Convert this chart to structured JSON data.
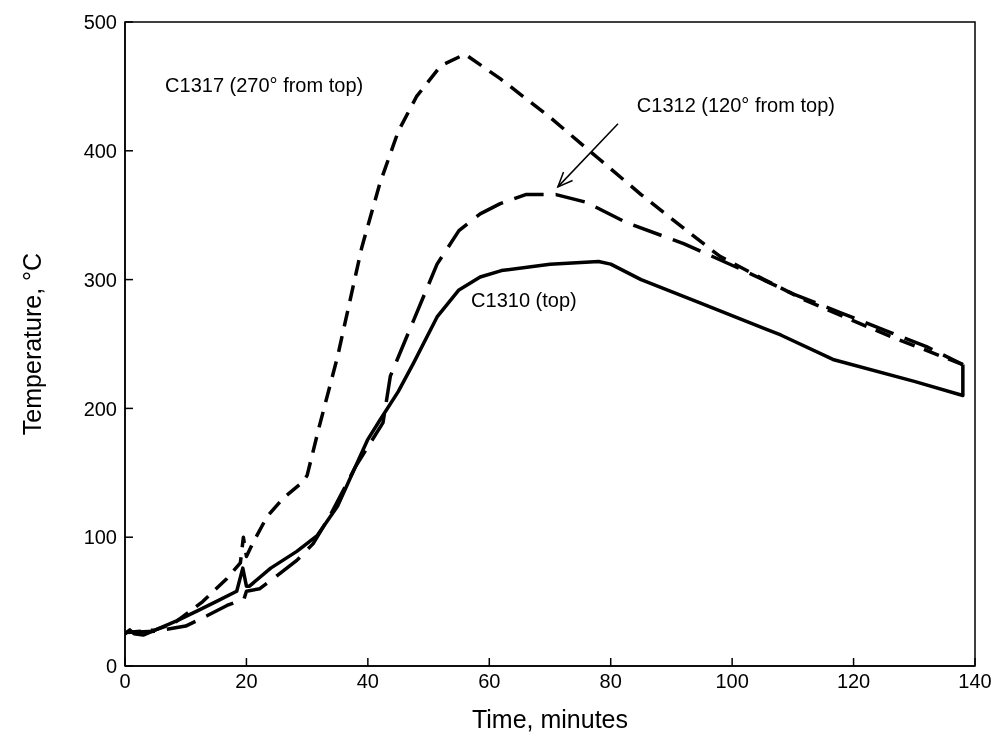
{
  "chart_data": {
    "type": "line",
    "xlabel": "Time, minutes",
    "ylabel": "Temperature, °C",
    "xlim": [
      0,
      140
    ],
    "xticks": [
      0,
      20,
      40,
      60,
      80,
      100,
      120,
      140
    ],
    "ylim": [
      0,
      500
    ],
    "yticks": [
      0,
      100,
      200,
      300,
      400,
      500
    ],
    "grid": false,
    "legend": false,
    "marker": "none",
    "series": [
      {
        "name": "C1317 (270° from top)",
        "color": "#000000",
        "line_style": "dashed",
        "x": [
          0,
          5,
          8,
          12.8,
          16.8,
          19,
          19.5,
          20,
          21,
          23.4,
          26,
          29.3,
          30,
          32,
          35,
          39,
          42,
          45,
          48,
          52,
          56,
          61.8,
          70,
          78,
          85,
          92,
          98,
          105.7,
          112,
          120,
          126.5,
          132,
          138
        ],
        "values": [
          26,
          28,
          33,
          50,
          68,
          80,
          100,
          85,
          95,
          116,
          130,
          143,
          148,
          186,
          240,
          325,
          375,
          415,
          442,
          466,
          475,
          456,
          426,
          394,
          366,
          340,
          318,
          299,
          284,
          268,
          255,
          245,
          234
        ]
      },
      {
        "name": "C1312 (120° from top)",
        "color": "#000000",
        "line_style": "dashed",
        "x": [
          0,
          5,
          10,
          13.5,
          16.8,
          19,
          19.6,
          20,
          22.2,
          25,
          28.3,
          31,
          33.8,
          38,
          42.5,
          43.7,
          47.5,
          51.4,
          55,
          58.5,
          61.8,
          66,
          71,
          76,
          82.7,
          92,
          101,
          110,
          118,
          126,
          132,
          138
        ],
        "values": [
          26,
          27,
          31,
          39,
          47,
          51,
          52,
          58,
          60,
          70,
          82,
          95,
          117,
          155,
          189,
          225,
          268,
          312,
          338,
          351,
          359,
          366,
          366,
          360,
          344,
          328,
          309,
          289,
          274,
          259,
          248,
          234
        ]
      },
      {
        "name": "C1310 (top)",
        "color": "#000000",
        "line_style": "solid",
        "x": [
          0,
          0.8,
          1.5,
          3,
          8.5,
          12,
          15,
          18.4,
          19.4,
          20,
          20.5,
          24,
          28.3,
          31.6,
          35,
          40,
          42,
          45,
          47.5,
          51.4,
          55,
          58.5,
          62,
          70,
          78,
          80,
          85,
          94.7,
          108,
          116.6,
          130,
          138,
          138
        ],
        "values": [
          25,
          28,
          25,
          24,
          35,
          43,
          50,
          58,
          76,
          62,
          62,
          76,
          89,
          101,
          124,
          176,
          191,
          213,
          235,
          271,
          292,
          302,
          307,
          312,
          314,
          312,
          300,
          282,
          257,
          238,
          221,
          210,
          234
        ]
      }
    ]
  }
}
